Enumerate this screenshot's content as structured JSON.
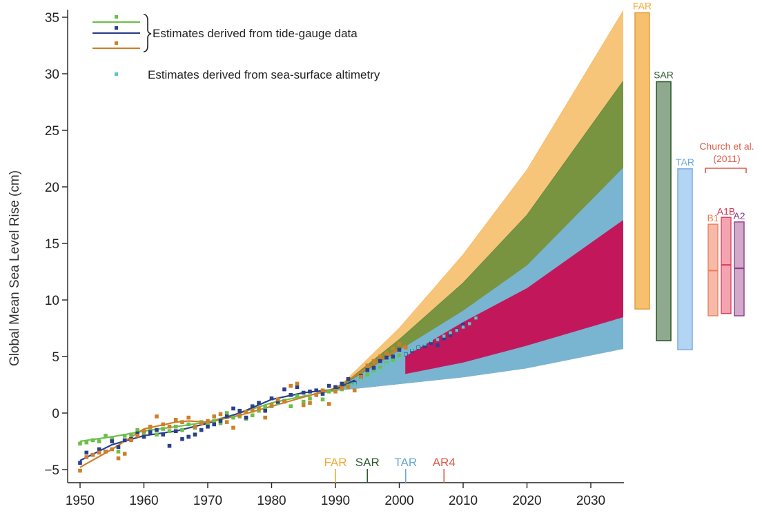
{
  "chart_data": {
    "type": "area",
    "ylabel": "Global Mean Sea Level Rise (cm)",
    "xlabel": "",
    "xlim": [
      1949,
      2035
    ],
    "ylim": [
      -6.5,
      35.5
    ],
    "x_ticks": [
      1950,
      1960,
      1970,
      1980,
      1990,
      2000,
      2010,
      2020,
      2030
    ],
    "y_ticks": [
      -5,
      0,
      5,
      10,
      15,
      20,
      25,
      30,
      35
    ],
    "legend": [
      {
        "label": "Estimates derived from tide-gauge data",
        "colors": [
          "#6cbf4a",
          "#2b3f8c",
          "#cf7f2a"
        ]
      },
      {
        "label": "Estimates derived from sea-surface altimetry",
        "colors": [
          "#5ec6c6"
        ]
      }
    ],
    "projection_bands": [
      {
        "name": "FAR",
        "color": "#f6c06e",
        "x": [
          1990,
          2000,
          2010,
          2020,
          2035
        ],
        "upper": [
          2.0,
          7.5,
          14.0,
          21.5,
          35.5
        ],
        "lower": [
          2.0,
          2.6,
          3.2,
          4.0,
          5.7
        ]
      },
      {
        "name": "SAR",
        "color": "#6e8f3c",
        "x": [
          1990,
          2000,
          2010,
          2020,
          2035
        ],
        "upper": [
          2.0,
          6.5,
          11.5,
          17.5,
          29.3
        ],
        "lower": [
          2.0,
          2.6,
          3.2,
          4.0,
          5.7
        ]
      },
      {
        "name": "TAR",
        "color": "#79b6dd",
        "x": [
          1990,
          2000,
          2010,
          2020,
          2035
        ],
        "upper": [
          2.0,
          5.5,
          9.0,
          13.0,
          21.6
        ],
        "lower": [
          2.0,
          2.6,
          3.2,
          4.0,
          5.7
        ]
      },
      {
        "name": "AR4",
        "color": "#c2185b",
        "x": [
          2001,
          2010,
          2020,
          2035
        ],
        "upper": [
          5.0,
          8.0,
          11.0,
          17.0
        ],
        "lower": [
          3.5,
          4.5,
          6.0,
          8.5
        ]
      }
    ],
    "tide_gauge_series": [
      {
        "color": "#6cbf4a",
        "x": [
          1950,
          1955,
          1960,
          1965,
          1970,
          1975,
          1980,
          1985,
          1990,
          1993
        ],
        "y": [
          -2.5,
          -2.1,
          -1.6,
          -1.2,
          -0.8,
          0.0,
          0.9,
          1.5,
          2.0,
          2.8
        ]
      },
      {
        "color": "#2b3f8c",
        "x": [
          1950,
          1955,
          1960,
          1965,
          1970,
          1975,
          1980,
          1985,
          1990,
          1993
        ],
        "y": [
          -4.2,
          -2.8,
          -2.0,
          -1.6,
          -0.9,
          0.0,
          1.2,
          1.8,
          2.1,
          2.9
        ]
      },
      {
        "color": "#cf7f2a",
        "x": [
          1950,
          1955,
          1960,
          1965,
          1967,
          1970,
          1975,
          1980,
          1985,
          1990,
          1995,
          2001
        ],
        "y": [
          -4.8,
          -3.2,
          -1.4,
          -0.8,
          -0.7,
          -0.8,
          -0.2,
          0.6,
          1.4,
          2.2,
          4.0,
          6.0
        ]
      }
    ],
    "tide_gauge_points": [
      {
        "color": "#6cbf4a",
        "x": [
          1950,
          1951,
          1952,
          1953,
          1954,
          1955,
          1956,
          1957,
          1958,
          1959,
          1960,
          1961,
          1962,
          1963,
          1964,
          1965,
          1966,
          1967,
          1968,
          1969,
          1970,
          1971,
          1972,
          1973,
          1974,
          1975,
          1976,
          1977,
          1978,
          1979,
          1980,
          1981,
          1982,
          1983,
          1984,
          1985,
          1986,
          1987,
          1988,
          1989,
          1990,
          1991,
          1992,
          1993,
          1994,
          1995,
          1996,
          1997,
          1998,
          1999,
          2000
        ],
        "y": [
          -2.7,
          -2.6,
          -2.4,
          -2.5,
          -2.0,
          -2.3,
          -3.4,
          -2.0,
          -1.9,
          -1.5,
          -1.8,
          -1.4,
          -1.9,
          -1.4,
          -1.6,
          -1.2,
          -1.5,
          -1.0,
          -1.3,
          -0.8,
          -1.0,
          -0.7,
          -0.9,
          0.0,
          -0.4,
          -0.3,
          -0.5,
          -0.2,
          0.2,
          0.5,
          0.6,
          0.9,
          1.1,
          0.6,
          1.5,
          1.0,
          1.3,
          1.6,
          1.2,
          1.9,
          2.0,
          2.1,
          2.4,
          2.6,
          3.0,
          3.4,
          3.7,
          4.0,
          4.4,
          4.7,
          5.1
        ]
      },
      {
        "color": "#2b3f8c",
        "x": [
          1950,
          1951,
          1952,
          1953,
          1954,
          1955,
          1956,
          1957,
          1958,
          1959,
          1960,
          1961,
          1962,
          1963,
          1964,
          1965,
          1966,
          1967,
          1968,
          1969,
          1970,
          1971,
          1972,
          1973,
          1974,
          1975,
          1976,
          1977,
          1978,
          1979,
          1980,
          1981,
          1982,
          1983,
          1984,
          1985,
          1986,
          1987,
          1988,
          1989,
          1990,
          1991,
          1992,
          1993,
          1994,
          1995,
          1996,
          1997,
          1998,
          1999,
          2000,
          2001,
          2002,
          2003,
          2004,
          2005,
          2006,
          2007,
          2008,
          2009,
          2010
        ],
        "y": [
          -4.4,
          -3.5,
          -3.7,
          -3.2,
          -3.4,
          -2.5,
          -3.0,
          -2.4,
          -2.3,
          -1.8,
          -2.1,
          -1.7,
          -1.5,
          -1.9,
          -2.9,
          -1.6,
          -2.3,
          -2.1,
          -1.9,
          -1.5,
          -1.2,
          -1.0,
          -0.7,
          -0.3,
          0.4,
          0.2,
          -0.4,
          0.6,
          0.9,
          0.2,
          1.3,
          1.0,
          2.1,
          1.6,
          2.3,
          1.8,
          1.9,
          2.0,
          1.7,
          2.4,
          2.3,
          2.6,
          3.0,
          2.7,
          3.3,
          3.8,
          4.0,
          4.6,
          4.9,
          5.0,
          5.6,
          5.2,
          5.5,
          5.8,
          5.9,
          6.2,
          6.0,
          6.6,
          6.9,
          7.3,
          7.8
        ]
      },
      {
        "color": "#cf7f2a",
        "x": [
          1950,
          1951,
          1952,
          1953,
          1954,
          1955,
          1956,
          1957,
          1958,
          1959,
          1960,
          1961,
          1962,
          1963,
          1964,
          1965,
          1966,
          1967,
          1968,
          1969,
          1970,
          1971,
          1972,
          1973,
          1974,
          1975,
          1976,
          1977,
          1978,
          1979,
          1980,
          1981,
          1982,
          1983,
          1984,
          1985,
          1986,
          1987,
          1988,
          1989,
          1990,
          1991,
          1992,
          1993,
          1994,
          1995,
          1996,
          1997,
          1998,
          1999,
          2000,
          2001
        ],
        "y": [
          -5.1,
          -3.9,
          -3.7,
          -3.5,
          -3.4,
          -3.2,
          -4.0,
          -3.6,
          -2.4,
          -2.0,
          -1.6,
          -1.2,
          -0.3,
          -1.0,
          -1.2,
          -0.6,
          -0.8,
          -0.4,
          -1.2,
          -0.9,
          -0.7,
          -0.3,
          -0.1,
          -0.8,
          -1.3,
          -0.2,
          0.1,
          0.2,
          0.4,
          -0.4,
          0.7,
          1.2,
          1.0,
          2.4,
          2.6,
          0.7,
          0.9,
          1.6,
          2.0,
          0.8,
          1.9,
          2.2,
          2.3,
          2.0,
          3.2,
          4.2,
          4.6,
          5.0,
          5.3,
          5.7,
          6.1,
          5.8
        ]
      }
    ],
    "altimetry_points": {
      "color": "#5ec6c6",
      "x": [
        1993,
        1994,
        1995,
        1996,
        1997,
        1998,
        1999,
        2000,
        2001,
        2002,
        2003,
        2004,
        2005,
        2006,
        2007,
        2008,
        2009,
        2010,
        2011,
        2012
      ],
      "y": [
        2.6,
        2.9,
        3.1,
        3.5,
        3.8,
        4.3,
        4.4,
        4.8,
        5.2,
        5.6,
        5.8,
        6.1,
        6.4,
        6.5,
        6.8,
        7.1,
        7.3,
        7.6,
        7.9,
        8.4
      ]
    },
    "report_bars": [
      {
        "label": "FAR",
        "color": "#f6c06e",
        "stroke": "#e8a040",
        "labelColor": "#f0a830",
        "low": 9.2,
        "high": 35.4
      },
      {
        "label": "SAR",
        "color": "#8fa98e",
        "stroke": "#2f5a2f",
        "labelColor": "#2f5a2f",
        "low": 6.4,
        "high": 29.3
      },
      {
        "label": "TAR",
        "color": "#b3d4f2",
        "stroke": "#7fb2e0",
        "labelColor": "#6aa7d8",
        "low": 5.6,
        "high": 21.6
      }
    ],
    "church_group": {
      "title_line1": "Church et al.",
      "title_line2": "(2011)",
      "color": "#e05a47",
      "bars": [
        {
          "label": "B1",
          "color": "#f7b9a8",
          "stroke": "#e88060",
          "labelColor": "#e8804f",
          "low": 8.6,
          "high": 16.7,
          "mid": 12.6
        },
        {
          "label": "A1B",
          "color": "#f5a3b0",
          "stroke": "#e0405a",
          "labelColor": "#d8304a",
          "low": 8.8,
          "high": 17.3,
          "mid": 13.1
        },
        {
          "label": "A2",
          "color": "#d2a9c8",
          "stroke": "#8a3f88",
          "labelColor": "#7f3a88",
          "low": 8.6,
          "high": 16.9,
          "mid": 12.8
        }
      ]
    },
    "report_releases": [
      {
        "label": "FAR",
        "year": 1990,
        "color": "#f0a830"
      },
      {
        "label": "SAR",
        "year": 1995,
        "color": "#2f5a2f"
      },
      {
        "label": "TAR",
        "year": 2001,
        "color": "#6aa7d8"
      },
      {
        "label": "AR4",
        "year": 2007,
        "color": "#e05a47"
      }
    ]
  }
}
